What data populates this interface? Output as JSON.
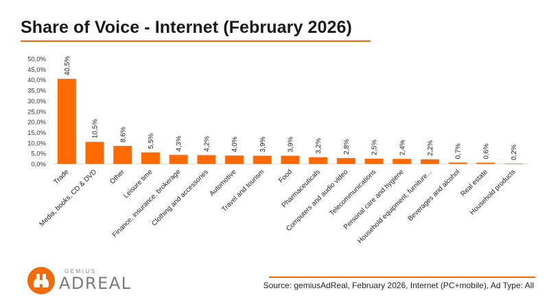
{
  "header": {
    "title": "Share of Voice - Internet (February 2026)"
  },
  "logo": {
    "small": "GEMIUS",
    "big": "ADREAL"
  },
  "footer": {
    "source": "Source: gemiusAdReal, February 2026, Internet (PC+mobile), Ad Type: All"
  },
  "colors": {
    "accent": "#f26b0a",
    "bar": "#ff6a00"
  },
  "chart_data": {
    "type": "bar",
    "title": "Share of Voice - Internet (February 2026)",
    "categories": [
      "Trade",
      "Media, books, CD & DVD",
      "Other",
      "Leisure time",
      "Finance, insurance, brokerage",
      "Clothing and accessories",
      "Automotive",
      "Travel and tourism",
      "Food",
      "Pharmaceuticals",
      "Computers and audio video",
      "Telecommunications",
      "Personal care and hygiene",
      "Household equipment, furniture...",
      "Beverages and alcohol",
      "Real estate",
      "Household products"
    ],
    "values": [
      40.5,
      10.5,
      8.6,
      5.5,
      4.3,
      4.2,
      4.0,
      3.9,
      3.9,
      3.2,
      2.8,
      2.5,
      2.4,
      2.2,
      0.7,
      0.6,
      0.2
    ],
    "value_labels": [
      "40,5%",
      "10,5%",
      "8,6%",
      "5,5%",
      "4,3%",
      "4,2%",
      "4,0%",
      "3,9%",
      "3,9%",
      "3,2%",
      "2,8%",
      "2,5%",
      "2,4%",
      "2,2%",
      "0,7%",
      "0,6%",
      "0,2%"
    ],
    "yticks": [
      0,
      5,
      10,
      15,
      20,
      25,
      30,
      35,
      40,
      45,
      50
    ],
    "ytick_labels": [
      "0,0%",
      "5,0%",
      "10,0%",
      "15,0%",
      "20,0%",
      "25,0%",
      "30,0%",
      "35,0%",
      "40,0%",
      "45,0%",
      "50,0%"
    ],
    "ylim": [
      0,
      50
    ],
    "xlabel": "",
    "ylabel": "",
    "grid": false,
    "legend": "none"
  }
}
